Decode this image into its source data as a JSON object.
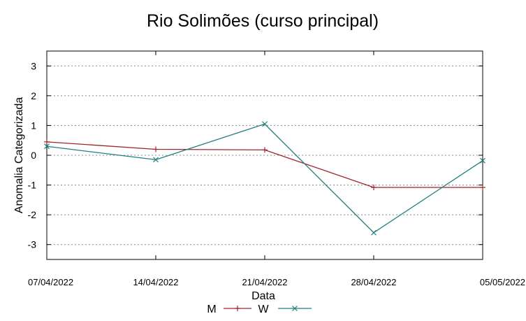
{
  "chart_data": {
    "type": "line",
    "title": "Rio Solimões (curso principal)",
    "xlabel": "Data",
    "ylabel": "Anomalia Categorizada",
    "categories": [
      "07/04/2022",
      "14/04/2022",
      "21/04/2022",
      "28/04/2022",
      "05/05/2022"
    ],
    "ylim": [
      -3.5,
      3.5
    ],
    "yticks": [
      "3",
      "2",
      "1",
      "0",
      "-1",
      "-2",
      "-3"
    ],
    "ytick_values": [
      3,
      2,
      1,
      0,
      -1,
      -2,
      -3
    ],
    "grid": "horizontal dotted",
    "legend_position": "bottom",
    "series": [
      {
        "name": "M",
        "values": [
          0.45,
          0.2,
          0.18,
          -1.08,
          -1.08
        ],
        "color": "#a0242b",
        "marker": "plus"
      },
      {
        "name": "W",
        "values": [
          0.3,
          -0.15,
          1.05,
          -2.6,
          -0.18
        ],
        "color": "#1f7f7f",
        "marker": "cross"
      }
    ]
  }
}
